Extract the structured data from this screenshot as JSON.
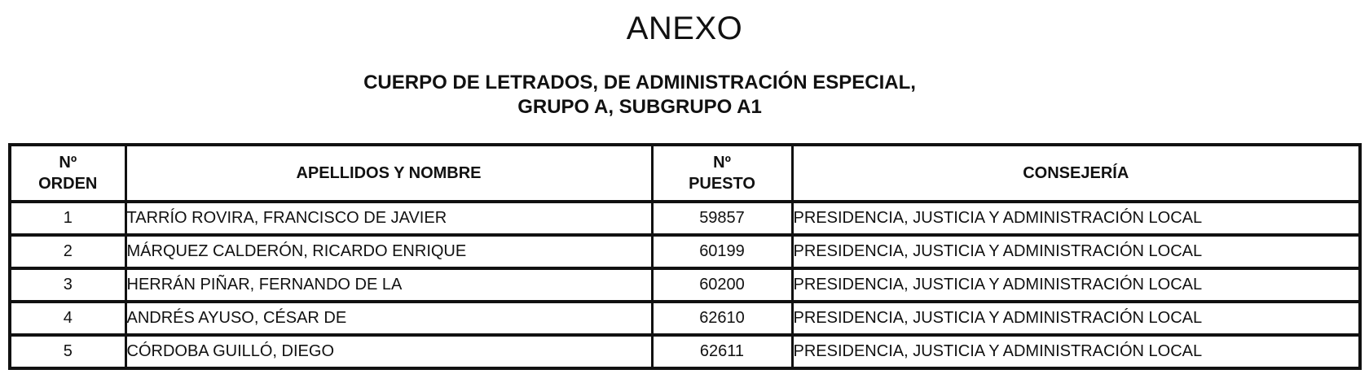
{
  "page": {
    "title": "ANEXO",
    "subtitle_line1": "CUERPO DE LETRADOS, DE ADMINISTRACIÓN ESPECIAL,",
    "subtitle_line2": "GRUPO A, SUBGRUPO A1"
  },
  "table": {
    "headers": {
      "orden_line1": "Nº",
      "orden_line2": "ORDEN",
      "nombre": "APELLIDOS Y NOMBRE",
      "puesto_line1": "Nº",
      "puesto_line2": "PUESTO",
      "consejeria": "CONSEJERÍA"
    },
    "rows": [
      {
        "orden": "1",
        "nombre": "TARRÍO ROVIRA, FRANCISCO DE JAVIER",
        "puesto": "59857",
        "consejeria": "PRESIDENCIA, JUSTICIA Y ADMINISTRACIÓN LOCAL"
      },
      {
        "orden": "2",
        "nombre": "MÁRQUEZ CALDERÓN, RICARDO ENRIQUE",
        "puesto": "60199",
        "consejeria": "PRESIDENCIA, JUSTICIA Y ADMINISTRACIÓN LOCAL"
      },
      {
        "orden": "3",
        "nombre": "HERRÁN PIÑAR, FERNANDO DE LA",
        "puesto": "60200",
        "consejeria": "PRESIDENCIA, JUSTICIA Y ADMINISTRACIÓN LOCAL"
      },
      {
        "orden": "4",
        "nombre": "ANDRÉS AYUSO, CÉSAR DE",
        "puesto": "62610",
        "consejeria": "PRESIDENCIA, JUSTICIA Y ADMINISTRACIÓN LOCAL"
      },
      {
        "orden": "5",
        "nombre": "CÓRDOBA GUILLÓ, DIEGO",
        "puesto": "62611",
        "consejeria": "PRESIDENCIA, JUSTICIA Y ADMINISTRACIÓN LOCAL"
      }
    ]
  },
  "colors": {
    "text": "#111111",
    "border": "#111111",
    "background": "#ffffff"
  }
}
